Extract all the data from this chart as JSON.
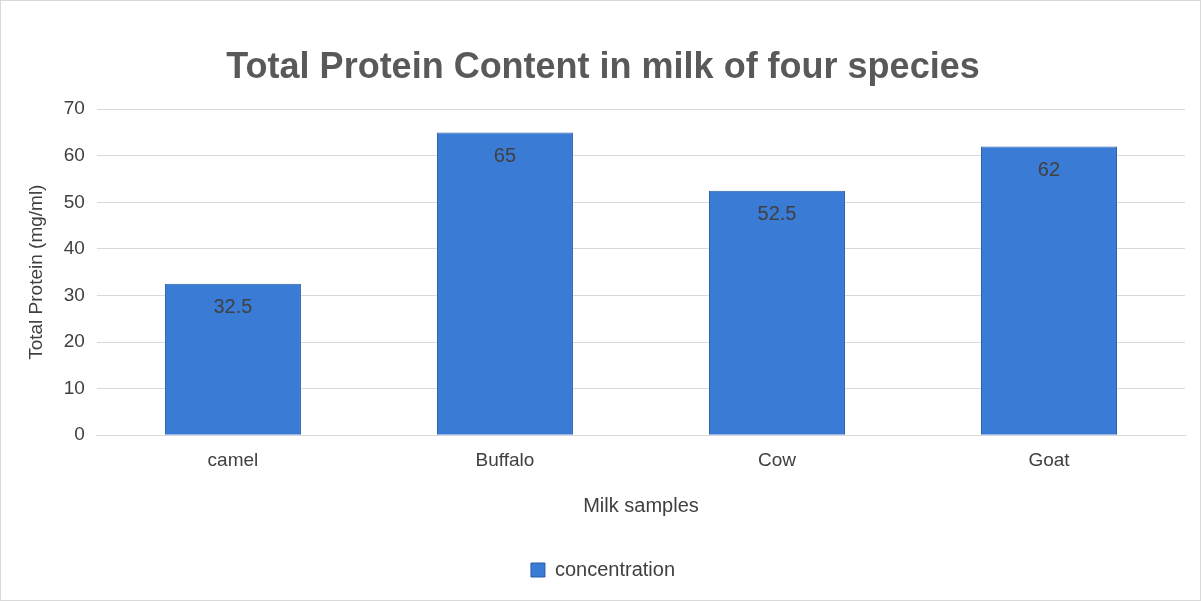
{
  "chart_data": {
    "type": "bar",
    "title": "Total Protein Content in milk of four species",
    "xlabel": "Milk samples",
    "ylabel": "Total Protein (mg/ml)",
    "categories": [
      "camel",
      "Buffalo",
      "Cow",
      "Goat"
    ],
    "series": [
      {
        "name": "concentration",
        "color": "#3a7bd5",
        "values": [
          32.5,
          65,
          52.5,
          62
        ]
      }
    ],
    "ylim": [
      0,
      70
    ],
    "yticks": [
      0,
      10,
      20,
      30,
      40,
      50,
      60,
      70
    ],
    "grid": "y",
    "legend": "bottom",
    "data_labels": true
  }
}
